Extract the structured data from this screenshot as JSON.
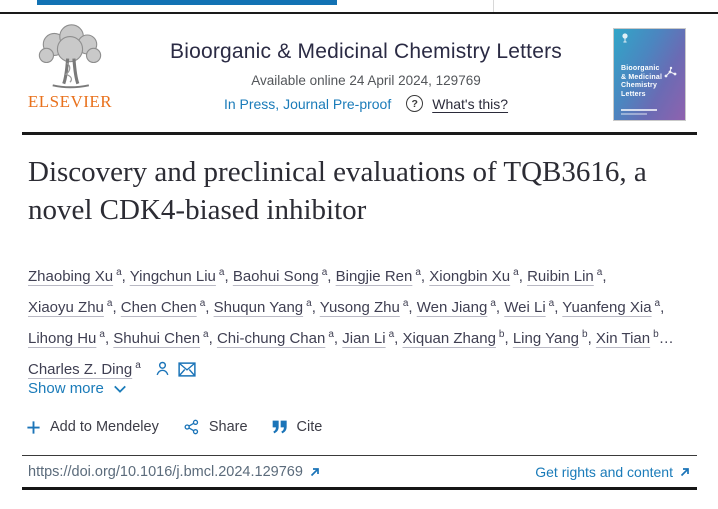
{
  "banner": {
    "wordmark": "ELSEVIER",
    "journal_title": "Bioorganic & Medicinal Chemistry Letters",
    "availability": "Available online 24 April 2024, 129769",
    "in_press_label": "In Press, Journal Pre-proof",
    "help_glyph": "?",
    "whats_this_label": "What's this?",
    "cover": {
      "title_lines": [
        "Bioorganic",
        "& Medicinal",
        "Chemistry",
        "Letters"
      ]
    }
  },
  "article": {
    "title": "Discovery and preclinical evaluations of TQB3616, a novel CDK4-biased inhibitor",
    "authors": [
      {
        "name": "Zhaobing Xu",
        "sup": "a",
        "sep": ", "
      },
      {
        "name": "Yingchun Liu",
        "sup": "a",
        "sep": ", "
      },
      {
        "name": "Baohui Song",
        "sup": "a",
        "sep": ", "
      },
      {
        "name": "Bingjie Ren",
        "sup": "a",
        "sep": ", "
      },
      {
        "name": "Xiongbin Xu",
        "sup": "a",
        "sep": ", "
      },
      {
        "name": "Ruibin Lin",
        "sup": "a",
        "sep": ", "
      },
      {
        "name": "Xiaoyu Zhu",
        "sup": "a",
        "sep": ", "
      },
      {
        "name": "Chen Chen",
        "sup": "a",
        "sep": ", "
      },
      {
        "name": "Shuqun Yang",
        "sup": "a",
        "sep": ", "
      },
      {
        "name": "Yusong Zhu",
        "sup": "a",
        "sep": ", "
      },
      {
        "name": "Wen Jiang",
        "sup": "a",
        "sep": ", "
      },
      {
        "name": "Wei Li",
        "sup": "a",
        "sep": ", "
      },
      {
        "name": "Yuanfeng Xia",
        "sup": "a",
        "sep": ", "
      },
      {
        "name": "Lihong Hu",
        "sup": "a",
        "sep": ", "
      },
      {
        "name": "Shuhui Chen",
        "sup": "a",
        "sep": ", "
      },
      {
        "name": "Chi-chung Chan",
        "sup": "a",
        "sep": ", "
      },
      {
        "name": "Jian Li",
        "sup": "a",
        "sep": ", "
      },
      {
        "name": "Xiquan Zhang",
        "sup": "b",
        "sep": ", "
      },
      {
        "name": "Ling Yang",
        "sup": "b",
        "sep": ", "
      },
      {
        "name": "Xin Tian",
        "sup": "b",
        "sep": "…"
      },
      {
        "name": "Charles Z. Ding",
        "sup": "a",
        "sep": ""
      }
    ],
    "show_more_label": "Show more"
  },
  "actions": {
    "mendeley_label": "Add to Mendeley",
    "share_label": "Share",
    "cite_label": "Cite"
  },
  "footer": {
    "doi": "https://doi.org/10.1016/j.bmcl.2024.129769",
    "rights_label": "Get rights and content"
  },
  "colors": {
    "link_blue": "#1a7bb9",
    "icon_blue": "#1b74b8",
    "accent_orange": "#e9711c",
    "progress_blue": "#1272b4"
  }
}
